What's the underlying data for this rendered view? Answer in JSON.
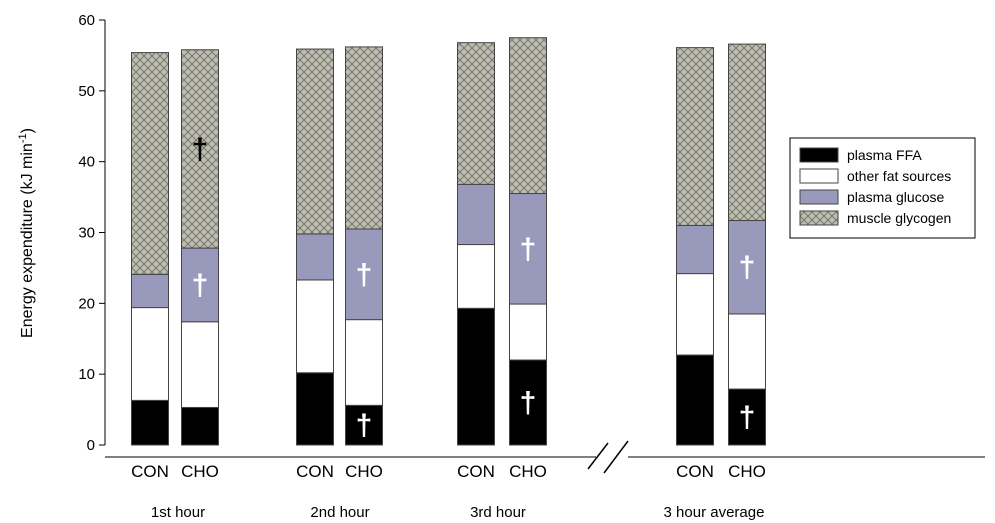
{
  "chart_data": {
    "type": "bar",
    "stacked": true,
    "ylabel": "Energy expenditure (kJ min",
    "ylabel_sup": "-1",
    "ylabel_close": ")",
    "ylim": [
      0,
      60
    ],
    "yticks": [
      "0",
      "10",
      "20",
      "30",
      "40",
      "50",
      "60"
    ],
    "axis_break_after_group": 2,
    "groups": [
      {
        "label": "1st hour",
        "bars": [
          {
            "label": "CON",
            "values": [
              6.3,
              13.1,
              4.7,
              31.3
            ],
            "marks": []
          },
          {
            "label": "CHO",
            "values": [
              5.3,
              12.1,
              10.4,
              28.0
            ],
            "marks": [
              "plasma glucose",
              "muscle glycogen"
            ]
          }
        ]
      },
      {
        "label": "2nd hour",
        "bars": [
          {
            "label": "CON",
            "values": [
              10.2,
              13.1,
              6.5,
              26.1
            ],
            "marks": []
          },
          {
            "label": "CHO",
            "values": [
              5.6,
              12.1,
              12.8,
              25.7
            ],
            "marks": [
              "plasma FFA",
              "plasma glucose"
            ]
          }
        ]
      },
      {
        "label": "3rd hour",
        "bars": [
          {
            "label": "CON",
            "values": [
              19.3,
              9.0,
              8.5,
              20.0
            ],
            "marks": []
          },
          {
            "label": "CHO",
            "values": [
              12.0,
              7.9,
              15.6,
              22.0
            ],
            "marks": [
              "plasma FFA",
              "plasma glucose"
            ]
          }
        ]
      },
      {
        "label": "3 hour average",
        "bars": [
          {
            "label": "CON",
            "values": [
              12.7,
              11.5,
              6.8,
              25.1
            ],
            "marks": []
          },
          {
            "label": "CHO",
            "values": [
              7.9,
              10.6,
              13.2,
              24.9
            ],
            "marks": [
              "plasma FFA",
              "plasma glucose"
            ]
          }
        ]
      }
    ],
    "series": [
      {
        "name": "plasma FFA",
        "color": "#000000"
      },
      {
        "name": "other fat sources",
        "color": "#ffffff"
      },
      {
        "name": "plasma glucose",
        "color": "#9999bb"
      },
      {
        "name": "muscle glycogen",
        "color": "#bdbdb0"
      }
    ],
    "significance_mark": "†",
    "legend_position": "right"
  }
}
